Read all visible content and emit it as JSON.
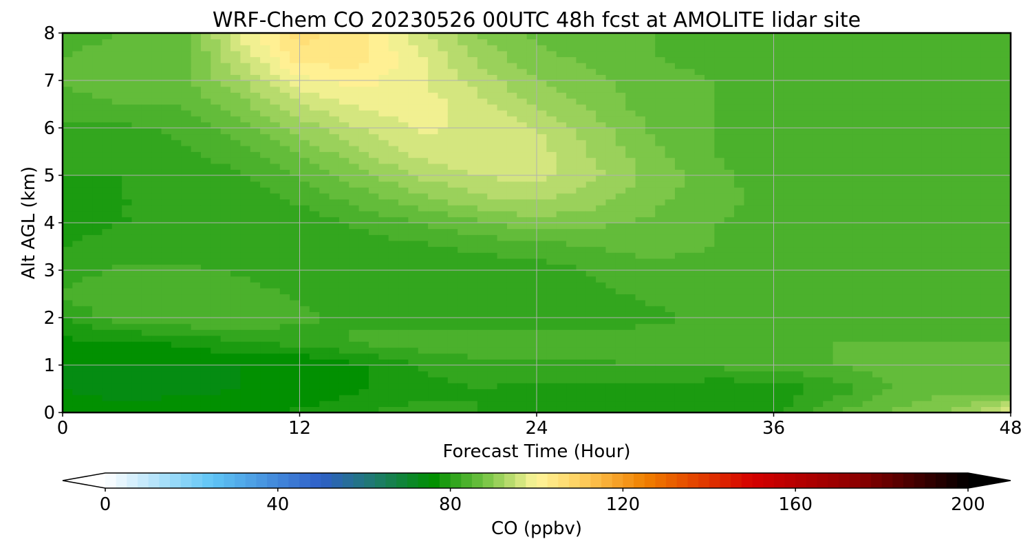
{
  "chart_data": {
    "type": "heatmap",
    "subtype": "filled-contour (time-height cross section)",
    "title": "WRF-Chem CO  20230526 00UTC 48h fcst at AMOLITE lidar site",
    "xlabel": "Forecast Time (Hour)",
    "ylabel": "Alt AGL (km)",
    "xlim": [
      0,
      48
    ],
    "ylim": [
      0,
      8
    ],
    "xticks": [
      0,
      12,
      24,
      36,
      48
    ],
    "yticks": [
      0,
      1,
      2,
      3,
      4,
      5,
      6,
      7,
      8
    ],
    "grid": true,
    "x": [
      0,
      3,
      6,
      9,
      12,
      15,
      18,
      21,
      24,
      27,
      30,
      33,
      36,
      39,
      42,
      45,
      48
    ],
    "y": [
      0,
      0.5,
      1,
      1.5,
      2,
      2.5,
      3,
      3.5,
      4,
      4.5,
      5,
      5.5,
      6,
      6.5,
      7,
      7.5,
      8
    ],
    "z_units": "ppbv",
    "z": [
      [
        76,
        76,
        77,
        77,
        78,
        80,
        81,
        80,
        78,
        79,
        80,
        79,
        79,
        85,
        88,
        90,
        97
      ],
      [
        75,
        74,
        74,
        75,
        75,
        77,
        79,
        80,
        79,
        79,
        79,
        78,
        78,
        81,
        85,
        87,
        86
      ],
      [
        75,
        75,
        75,
        75,
        75,
        77,
        80,
        82,
        82,
        82,
        83,
        83,
        84,
        85,
        86,
        86,
        86
      ],
      [
        77,
        77,
        78,
        80,
        81,
        83,
        84,
        84,
        84,
        84,
        84,
        84,
        84,
        85,
        85,
        85,
        85
      ],
      [
        80,
        84,
        85,
        85,
        83,
        82,
        81,
        80,
        80,
        81,
        82,
        83,
        84,
        84,
        84,
        84,
        84
      ],
      [
        83,
        85,
        85,
        84,
        82,
        81,
        80,
        80,
        81,
        82,
        83,
        84,
        84,
        84,
        84,
        84,
        84
      ],
      [
        81,
        83,
        83,
        82,
        80,
        80,
        80,
        81,
        81,
        83,
        84,
        84,
        84,
        84,
        84,
        84,
        84
      ],
      [
        80,
        81,
        81,
        80,
        80,
        81,
        82,
        83,
        84,
        85,
        86,
        85,
        84,
        84,
        84,
        84,
        84
      ],
      [
        79,
        80,
        80,
        80,
        81,
        83,
        85,
        87,
        89,
        88,
        87,
        85,
        84,
        85,
        85,
        84,
        84
      ],
      [
        79,
        80,
        80,
        81,
        83,
        86,
        89,
        92,
        93,
        91,
        88,
        86,
        84,
        84,
        84,
        84,
        84
      ],
      [
        80,
        80,
        81,
        82,
        85,
        89,
        93,
        95,
        96,
        93,
        89,
        86,
        83,
        83,
        83,
        83,
        83
      ],
      [
        81,
        81,
        82,
        84,
        88,
        92,
        96,
        97,
        96,
        92,
        88,
        85,
        83,
        83,
        83,
        83,
        83
      ],
      [
        82,
        82,
        83,
        86,
        91,
        95,
        98,
        97,
        95,
        91,
        87,
        85,
        84,
        84,
        84,
        84,
        83
      ],
      [
        84,
        85,
        85,
        89,
        95,
        98,
        99,
        96,
        92,
        89,
        86,
        85,
        84,
        84,
        84,
        84,
        84
      ],
      [
        85,
        87,
        87,
        92,
        99,
        101,
        98,
        94,
        90,
        88,
        86,
        85,
        85,
        85,
        84,
        84,
        84
      ],
      [
        85,
        86,
        86,
        95,
        104,
        104,
        98,
        92,
        88,
        87,
        85,
        84,
        84,
        84,
        84,
        84,
        84
      ],
      [
        84,
        85,
        86,
        98,
        106,
        103,
        96,
        90,
        87,
        86,
        85,
        84,
        84,
        84,
        84,
        84,
        84
      ]
    ],
    "colorbar": {
      "label": "CO  (ppbv)",
      "min": 0,
      "max": 200,
      "ticks": [
        0,
        40,
        80,
        120,
        160,
        200
      ],
      "extend": "both",
      "stops": [
        {
          "v": 0,
          "c": "#ffffff"
        },
        {
          "v": 25,
          "c": "#5ec4f5"
        },
        {
          "v": 50,
          "c": "#2f5fc8"
        },
        {
          "v": 62,
          "c": "#1f7a70"
        },
        {
          "v": 76,
          "c": "#008f00"
        },
        {
          "v": 88,
          "c": "#74c444"
        },
        {
          "v": 100,
          "c": "#fff59a"
        },
        {
          "v": 110,
          "c": "#ffd060"
        },
        {
          "v": 125,
          "c": "#f08000"
        },
        {
          "v": 150,
          "c": "#d50000"
        },
        {
          "v": 175,
          "c": "#8a0000"
        },
        {
          "v": 200,
          "c": "#000000"
        }
      ],
      "under_color": "#ffffff",
      "over_color": "#000000"
    }
  }
}
